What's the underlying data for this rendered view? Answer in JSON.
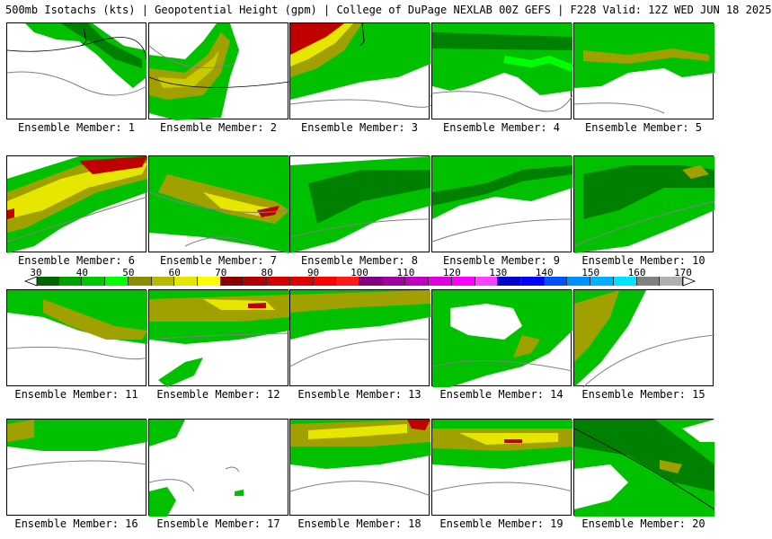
{
  "title": "500mb Isotachs (kts) | Geopotential Height (gpm) | College of DuPage NEXLAB   00Z GEFS | F228 Valid: 12Z WED JUN 18 2025",
  "colorbar": {
    "ticks": [
      "30",
      "40",
      "50",
      "60",
      "70",
      "80",
      "90",
      "100",
      "110",
      "120",
      "130",
      "140",
      "150",
      "160",
      "170"
    ],
    "colors": [
      "#006400",
      "#00a000",
      "#00c800",
      "#00ff00",
      "#8b8b00",
      "#b8b800",
      "#e6e600",
      "#ffff00",
      "#8b0000",
      "#b00000",
      "#d00000",
      "#e00000",
      "#ff0000",
      "#ff1a1a",
      "#800080",
      "#a000a0",
      "#c000c0",
      "#e000e0",
      "#ff00ff",
      "#ff40ff",
      "#0000cd",
      "#0000ff",
      "#0050ff",
      "#0090ff",
      "#00b0ff",
      "#00e0ff",
      "#808080",
      "#b0b0b0"
    ]
  },
  "members": [
    {
      "label": "Ensemble Member: 1"
    },
    {
      "label": "Ensemble Member: 2"
    },
    {
      "label": "Ensemble Member: 3"
    },
    {
      "label": "Ensemble Member: 4"
    },
    {
      "label": "Ensemble Member: 5"
    },
    {
      "label": "Ensemble Member: 6"
    },
    {
      "label": "Ensemble Member: 7"
    },
    {
      "label": "Ensemble Member: 8"
    },
    {
      "label": "Ensemble Member: 9"
    },
    {
      "label": "Ensemble Member: 10"
    },
    {
      "label": "Ensemble Member: 11"
    },
    {
      "label": "Ensemble Member: 12"
    },
    {
      "label": "Ensemble Member: 13"
    },
    {
      "label": "Ensemble Member: 14"
    },
    {
      "label": "Ensemble Member: 15"
    },
    {
      "label": "Ensemble Member: 16"
    },
    {
      "label": "Ensemble Member: 17"
    },
    {
      "label": "Ensemble Member: 18"
    },
    {
      "label": "Ensemble Member: 19"
    },
    {
      "label": "Ensemble Member: 20"
    }
  ],
  "colors": {
    "green_dark": "#008000",
    "green": "#00c000",
    "green_light": "#00ff00",
    "olive": "#a0a000",
    "yellow": "#e6e600",
    "red": "#c00000",
    "contour": "#808080",
    "height": "#000000"
  }
}
